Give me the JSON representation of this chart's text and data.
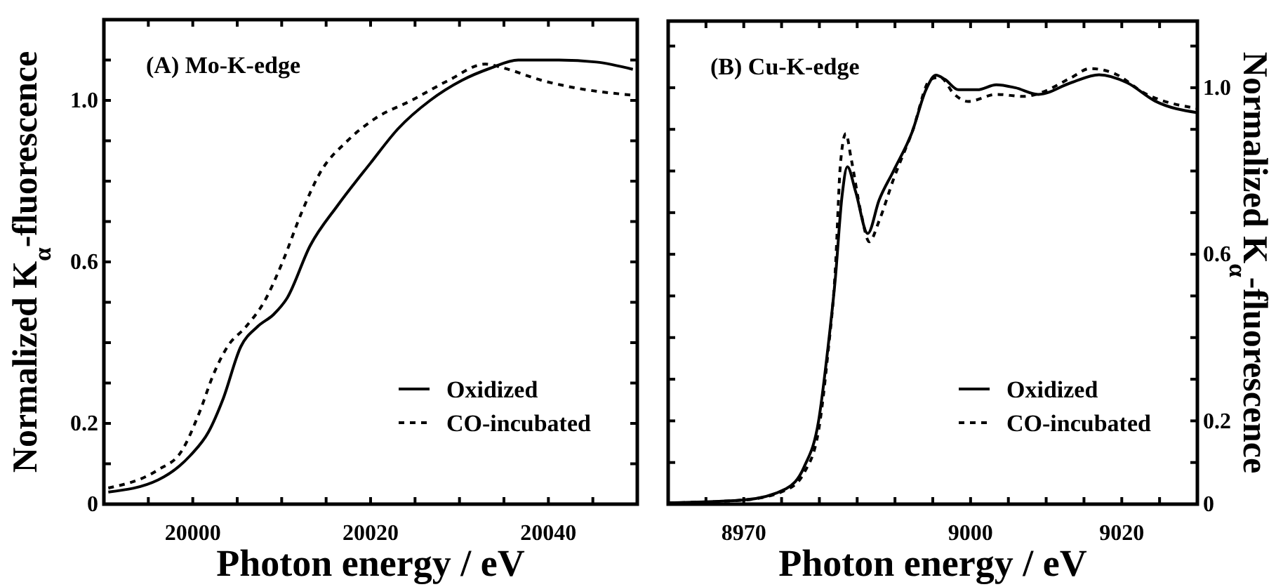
{
  "chart_data": [
    {
      "type": "line",
      "title": "(A) Mo-K-edge",
      "xlabel": "Photon energy / eV",
      "ylabel": "Normalized K$_{α}$-fluorescence",
      "xlim": [
        19990,
        20050
      ],
      "ylim": [
        0,
        1.2
      ],
      "xticks": [
        {
          "value": 19990,
          "label": null
        },
        {
          "value": 19995,
          "label": null
        },
        20000,
        {
          "value": 20005,
          "label": null
        },
        {
          "value": 20010,
          "label": null
        },
        {
          "value": 20015,
          "label": null
        },
        20020,
        {
          "value": 20025,
          "label": null
        },
        {
          "value": 20030,
          "label": null
        },
        {
          "value": 20035,
          "label": null
        },
        20040,
        {
          "value": 20045,
          "label": null
        },
        {
          "value": 20050,
          "label": null
        }
      ],
      "yticks": [
        0,
        {
          "value": 0.1,
          "label": null
        },
        0.2,
        {
          "value": 0.3,
          "label": null
        },
        {
          "value": 0.4,
          "label": null
        },
        {
          "value": 0.5,
          "label": null
        },
        0.6,
        {
          "value": 0.7,
          "label": null
        },
        {
          "value": 0.8,
          "label": null
        },
        {
          "value": 0.9,
          "label": null
        },
        {
          "value": 1.0,
          "label": "1.0"
        },
        {
          "value": 1.1,
          "label": null
        },
        {
          "value": 1.2,
          "label": null
        }
      ],
      "legend": "bottom right",
      "marker": "none",
      "series": [
        {
          "name": "Oxidized",
          "color": "#000000",
          "line_style": "solid",
          "x": [
            19990.5,
            19996.1,
            19999.7,
            20001.8,
            20003.4,
            20005.4,
            20007.3,
            20009.1,
            20010.6,
            20013.2,
            20016.3,
            20020,
            20023.1,
            20026.7,
            20030.3,
            20033.5,
            20036.6,
            20041.2,
            20045.4,
            20049.5
          ],
          "values": [
            0.03,
            0.06,
            0.12,
            0.18,
            0.26,
            0.39,
            0.44,
            0.47,
            0.51,
            0.64,
            0.74,
            0.845,
            0.93,
            1.0,
            1.05,
            1.08,
            1.1,
            1.1,
            1.095,
            1.077
          ]
        },
        {
          "name": "CO-incubated",
          "color": "#000000",
          "line_style": "dashed",
          "x": [
            19990.5,
            19996.1,
            19998.7,
            20000.8,
            20002.3,
            20003.9,
            20006,
            20008,
            20010.1,
            20012.2,
            20014.3,
            20017.4,
            20020.5,
            20024.6,
            20028.8,
            20032.9,
            20035,
            20039.2,
            20043.3,
            20049.5
          ],
          "values": [
            0.04,
            0.085,
            0.13,
            0.23,
            0.32,
            0.39,
            0.44,
            0.5,
            0.6,
            0.72,
            0.82,
            0.9,
            0.955,
            1.0,
            1.05,
            1.09,
            1.08,
            1.05,
            1.03,
            1.013
          ]
        }
      ]
    },
    {
      "type": "line",
      "title": "(B) Cu-K-edge",
      "xlabel": "Photon energy / eV",
      "y2label": "Normalized K$_{α}$-fluorescence",
      "xlim": [
        8960,
        9030
      ],
      "y2lim": [
        0,
        1.16
      ],
      "xticks": [
        {
          "value": 8960,
          "label": null
        },
        {
          "value": 8965,
          "label": null
        },
        8970,
        {
          "value": 8975,
          "label": null
        },
        {
          "value": 8980,
          "label": null
        },
        {
          "value": 8985,
          "label": null
        },
        {
          "value": 8990,
          "label": null
        },
        {
          "value": 8995,
          "label": null
        },
        9000,
        {
          "value": 9005,
          "label": null
        },
        {
          "value": 9010,
          "label": null
        },
        {
          "value": 9015,
          "label": null
        },
        9020,
        {
          "value": 9025,
          "label": null
        },
        {
          "value": 9030,
          "label": null
        }
      ],
      "y2ticks": [
        0,
        {
          "value": 0.1,
          "label": null
        },
        0.2,
        {
          "value": 0.3,
          "label": null
        },
        {
          "value": 0.4,
          "label": null
        },
        {
          "value": 0.5,
          "label": null
        },
        0.6,
        {
          "value": 0.7,
          "label": null
        },
        {
          "value": 0.8,
          "label": null
        },
        {
          "value": 0.9,
          "label": null
        },
        {
          "value": 1.0,
          "label": "1.0"
        },
        {
          "value": 1.1,
          "label": null
        }
      ],
      "legend": "bottom right",
      "marker": "none",
      "series": [
        {
          "name": "Oxidized",
          "color": "#000000",
          "line_style": "solid",
          "axis": "y2",
          "x": [
            8960,
            8970,
            8975.6,
            8978,
            8979.9,
            8981.1,
            8982.1,
            8983,
            8983.7,
            8984.8,
            8986.4,
            8987.9,
            8989.8,
            8992.3,
            8994.1,
            8995.4,
            8996.6,
            8998.4,
            9000.9,
            9003.4,
            9005.9,
            9009,
            9013.3,
            9017,
            9020.7,
            9024.4,
            9030
          ],
          "values": [
            0.003,
            0.01,
            0.037,
            0.09,
            0.2,
            0.37,
            0.54,
            0.74,
            0.81,
            0.75,
            0.65,
            0.73,
            0.8,
            0.895,
            0.995,
            1.03,
            1.02,
            0.995,
            0.995,
            1.007,
            1.0,
            0.984,
            1.012,
            1.031,
            1.012,
            0.968,
            0.94
          ]
        },
        {
          "name": "CO-incubated",
          "color": "#000000",
          "line_style": "dashed",
          "axis": "y2",
          "x": [
            8960,
            8970,
            8975.6,
            8978,
            8979.9,
            8981.1,
            8982.1,
            8982.8,
            8983.5,
            8984.2,
            8985.5,
            8986.6,
            8987.9,
            8989.8,
            8992.3,
            8994.7,
            8996,
            8997.8,
            8999.7,
            9003.4,
            9007.1,
            9009.6,
            9013.3,
            9015.8,
            9018.9,
            9023.2,
            9030
          ],
          "values": [
            0.003,
            0.01,
            0.034,
            0.076,
            0.177,
            0.357,
            0.56,
            0.82,
            0.89,
            0.83,
            0.7,
            0.63,
            0.68,
            0.78,
            0.895,
            1.02,
            1.025,
            0.985,
            0.967,
            0.984,
            0.979,
            0.99,
            1.024,
            1.046,
            1.035,
            0.985,
            0.95
          ]
        }
      ]
    }
  ]
}
